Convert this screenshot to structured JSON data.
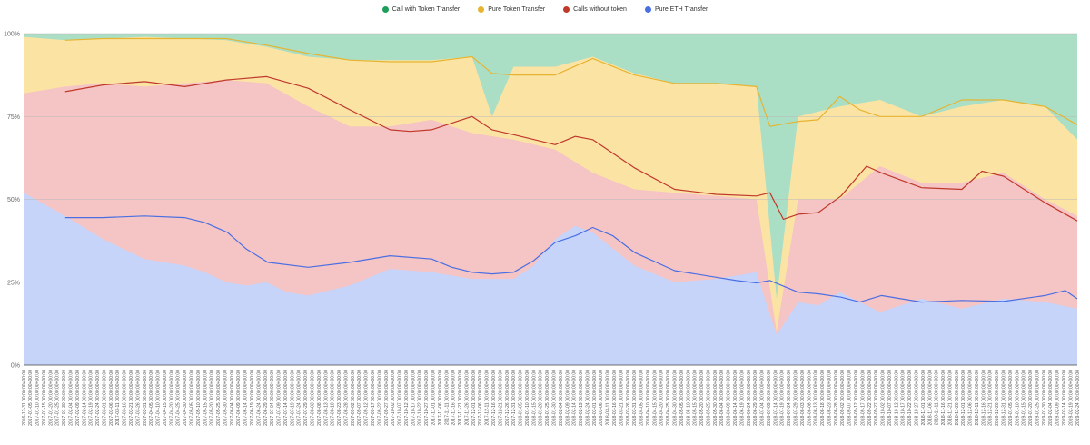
{
  "chart_data": {
    "type": "area",
    "stacked": true,
    "normalized": true,
    "legend_position": "top-center",
    "grid": true,
    "ylim": [
      0,
      100
    ],
    "y_tick_labels": [
      "0%",
      "25%",
      "50%",
      "75%",
      "100%"
    ],
    "x_start": "2016-12-31",
    "x_end": "2019-02-24",
    "x_tick_step_days": 5,
    "x_tick_suffix": " 00:00:00+00:00",
    "series": [
      {
        "name": "Pure ETH Transfer",
        "color": "#4a6fe3",
        "fill": "#c6d4fa",
        "x": [
          "2016-12-31",
          "2017-01-31",
          "2017-02-28",
          "2017-03-31",
          "2017-04-30",
          "2017-05-15",
          "2017-05-31",
          "2017-06-15",
          "2017-06-30",
          "2017-07-15",
          "2017-07-31",
          "2017-08-31",
          "2017-09-30",
          "2017-10-31",
          "2017-11-30",
          "2017-12-31",
          "2018-01-15",
          "2018-01-31",
          "2018-02-15",
          "2018-02-28",
          "2018-03-31",
          "2018-04-30",
          "2018-05-31",
          "2018-06-30",
          "2018-07-15",
          "2018-07-31",
          "2018-08-15",
          "2018-08-31",
          "2018-09-30",
          "2018-10-31",
          "2018-11-30",
          "2018-12-31",
          "2019-01-31",
          "2019-02-24"
        ],
        "values": [
          52,
          45,
          38,
          32,
          30,
          28,
          25,
          24,
          25,
          22,
          21,
          24,
          29,
          28,
          26,
          26,
          30,
          38,
          42,
          40,
          30,
          25,
          26,
          28,
          9,
          19,
          18,
          22,
          16,
          20,
          17,
          20,
          19,
          17
        ]
      },
      {
        "name": "Calls without token",
        "color": "#c0392b",
        "fill": "#f5c4c4",
        "x": [
          "2016-12-31",
          "2017-01-31",
          "2017-02-28",
          "2017-03-31",
          "2017-04-30",
          "2017-05-31",
          "2017-06-30",
          "2017-07-31",
          "2017-08-31",
          "2017-09-30",
          "2017-10-31",
          "2017-11-30",
          "2017-12-31",
          "2018-01-31",
          "2018-02-28",
          "2018-03-31",
          "2018-04-30",
          "2018-05-31",
          "2018-06-30",
          "2018-07-15",
          "2018-07-31",
          "2018-08-31",
          "2018-09-30",
          "2018-10-31",
          "2018-11-30",
          "2018-12-31",
          "2019-01-31",
          "2019-02-24"
        ],
        "values": [
          82,
          84,
          85,
          84,
          85,
          86,
          85,
          78,
          72,
          72,
          74,
          70,
          68,
          65,
          58,
          53,
          52,
          51,
          50,
          10,
          50,
          50,
          60,
          55,
          55,
          58,
          50,
          45
        ]
      },
      {
        "name": "Pure Token Transfer",
        "color": "#e6b431",
        "fill": "#fbe3a4",
        "x": [
          "2016-12-31",
          "2017-01-31",
          "2017-03-31",
          "2017-05-31",
          "2017-06-30",
          "2017-07-31",
          "2017-08-31",
          "2017-09-30",
          "2017-10-31",
          "2017-11-30",
          "2017-12-15",
          "2017-12-31",
          "2018-01-31",
          "2018-02-28",
          "2018-03-31",
          "2018-04-30",
          "2018-05-31",
          "2018-06-30",
          "2018-07-15",
          "2018-07-31",
          "2018-08-31",
          "2018-09-30",
          "2018-10-31",
          "2018-11-30",
          "2018-12-31",
          "2019-01-31",
          "2019-02-24"
        ],
        "values": [
          99,
          98,
          99,
          98,
          96,
          93,
          92,
          92,
          92,
          93,
          75,
          90,
          90,
          93,
          88,
          85,
          85,
          84,
          20,
          75,
          78,
          80,
          75,
          78,
          80,
          78,
          68
        ]
      },
      {
        "name": "Call with Token Transfer",
        "color": "#1e9d5b",
        "fill": "#aadfc5",
        "x": [
          "2016-12-31",
          "2019-02-24"
        ],
        "values": [
          100,
          100
        ]
      }
    ],
    "moving_average_lines": [
      {
        "series": "Pure ETH Transfer",
        "color": "#4a6fe3",
        "x": [
          "2017-01-31",
          "2017-02-28",
          "2017-03-31",
          "2017-04-30",
          "2017-05-15",
          "2017-06-01",
          "2017-06-15",
          "2017-07-01",
          "2017-07-31",
          "2017-08-31",
          "2017-09-30",
          "2017-10-31",
          "2017-11-15",
          "2017-11-30",
          "2017-12-15",
          "2017-12-31",
          "2018-01-15",
          "2018-01-31",
          "2018-02-15",
          "2018-02-28",
          "2018-03-15",
          "2018-03-31",
          "2018-04-30",
          "2018-05-31",
          "2018-06-15",
          "2018-06-30",
          "2018-07-10",
          "2018-07-31",
          "2018-08-15",
          "2018-09-01",
          "2018-09-15",
          "2018-10-01",
          "2018-10-31",
          "2018-11-30",
          "2018-12-31",
          "2019-01-31",
          "2019-02-15",
          "2019-02-24"
        ],
        "values": [
          44.5,
          44.5,
          45,
          44.5,
          43,
          40,
          35,
          31,
          29.5,
          31,
          33,
          32,
          29.5,
          28,
          27.5,
          28,
          31.5,
          37,
          39,
          41.5,
          39,
          34,
          28.5,
          26.5,
          25.5,
          24.8,
          25.5,
          22,
          21.5,
          20.5,
          19,
          21,
          19,
          19.5,
          19.2,
          21,
          22.5,
          20
        ]
      },
      {
        "series": "Calls without token",
        "color": "#c0392b",
        "x": [
          "2017-01-31",
          "2017-02-28",
          "2017-03-31",
          "2017-04-30",
          "2017-05-31",
          "2017-06-30",
          "2017-07-31",
          "2017-08-31",
          "2017-09-30",
          "2017-10-15",
          "2017-10-31",
          "2017-11-15",
          "2017-11-30",
          "2017-12-15",
          "2017-12-31",
          "2018-01-31",
          "2018-02-15",
          "2018-02-28",
          "2018-03-31",
          "2018-04-30",
          "2018-05-31",
          "2018-06-30",
          "2018-07-10",
          "2018-07-20",
          "2018-07-31",
          "2018-08-15",
          "2018-09-01",
          "2018-09-20",
          "2018-10-01",
          "2018-10-31",
          "2018-11-30",
          "2018-12-15",
          "2018-12-31",
          "2019-01-31",
          "2019-02-24"
        ],
        "values": [
          82.5,
          84.5,
          85.5,
          84,
          86,
          87,
          83.5,
          77,
          71,
          70.5,
          71,
          73,
          75,
          71,
          69.5,
          66.5,
          69,
          68,
          59.5,
          53,
          51.5,
          51,
          52,
          44,
          45.5,
          46,
          51,
          60,
          58,
          53.5,
          53,
          58.5,
          57,
          49,
          43.5
        ]
      },
      {
        "series": "Pure Token Transfer",
        "color": "#e6b431",
        "x": [
          "2017-01-31",
          "2017-02-28",
          "2017-03-31",
          "2017-04-30",
          "2017-05-31",
          "2017-06-30",
          "2017-07-31",
          "2017-08-31",
          "2017-09-30",
          "2017-10-31",
          "2017-11-30",
          "2017-12-15",
          "2017-12-31",
          "2018-01-31",
          "2018-02-28",
          "2018-03-31",
          "2018-04-30",
          "2018-05-31",
          "2018-06-30",
          "2018-07-10",
          "2018-07-31",
          "2018-08-15",
          "2018-08-31",
          "2018-09-15",
          "2018-09-30",
          "2018-10-31",
          "2018-11-30",
          "2018-12-31",
          "2019-01-31",
          "2019-02-24"
        ],
        "values": [
          98,
          98.5,
          98.5,
          98.5,
          98.5,
          96.5,
          94,
          92,
          91.5,
          91.5,
          93,
          88,
          87.5,
          87.5,
          92.5,
          87.5,
          85,
          85,
          84,
          72,
          73.5,
          74,
          81,
          77,
          75,
          75,
          80,
          80,
          78,
          72.5
        ]
      }
    ]
  }
}
